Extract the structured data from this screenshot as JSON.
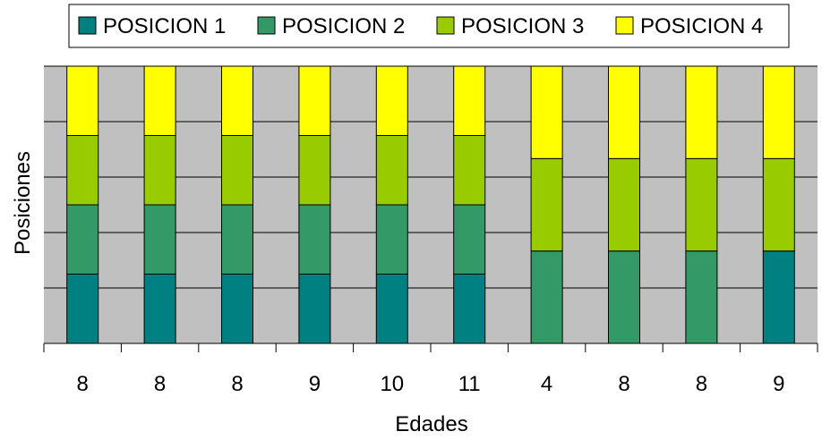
{
  "chart_data": {
    "type": "bar",
    "stacked": true,
    "percent_stacked": true,
    "xlabel": "Edades",
    "ylabel": "Posiciones",
    "categories": [
      "8",
      "8",
      "8",
      "9",
      "10",
      "11",
      "4",
      "8",
      "8",
      "9"
    ],
    "series": [
      {
        "name": "POSICION 1",
        "color": "#008080",
        "values": [
          1,
          1,
          1,
          1,
          1,
          1,
          0,
          0,
          0,
          1
        ]
      },
      {
        "name": "POSICION 2",
        "color": "#339966",
        "values": [
          1,
          1,
          1,
          1,
          1,
          1,
          1,
          1,
          1,
          0
        ]
      },
      {
        "name": "POSICION 3",
        "color": "#99CC00",
        "values": [
          1,
          1,
          1,
          1,
          1,
          1,
          1,
          1,
          1,
          1
        ]
      },
      {
        "name": "POSICION 4",
        "color": "#FFFF00",
        "values": [
          1,
          1,
          1,
          1,
          1,
          1,
          1,
          1,
          1,
          1
        ]
      }
    ],
    "ylim": [
      0,
      100
    ],
    "grid": true,
    "legend_position": "top",
    "plot_background": "#C0C0C0"
  }
}
